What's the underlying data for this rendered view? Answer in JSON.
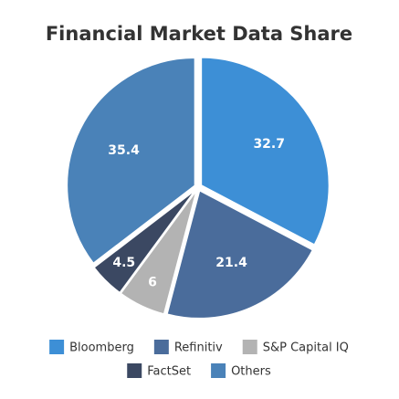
{
  "chart_data": {
    "type": "pie",
    "title": "Financial Market Data Share",
    "categories": [
      "Bloomberg",
      "Refinitiv",
      "S&P Capital IQ",
      "FactSet",
      "Others"
    ],
    "values": [
      32.7,
      21.4,
      6,
      4.5,
      35.4
    ],
    "colors": [
      "#3d8fd6",
      "#4a6c9b",
      "#b3b3b3",
      "#3b4862",
      "#4a82b8"
    ]
  }
}
